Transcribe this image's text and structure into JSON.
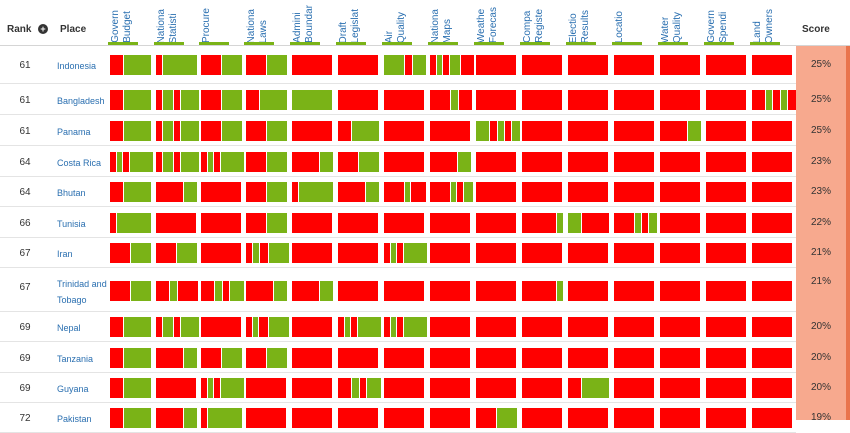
{
  "header": {
    "rank_label": "Rank",
    "place_label": "Place",
    "score_label": "Score",
    "columns": [
      {
        "key": "budget",
        "label": "Govern\nBudget"
      },
      {
        "key": "statistics",
        "label": "Nationa\nStatisti"
      },
      {
        "key": "procurement",
        "label": "Procure"
      },
      {
        "key": "laws",
        "label": "Nationa\nLaws"
      },
      {
        "key": "boundaries",
        "label": "Admini\nBoundar"
      },
      {
        "key": "legislation",
        "label": "Draft\nLegislat"
      },
      {
        "key": "air_quality",
        "label": "Air\nQuality"
      },
      {
        "key": "maps",
        "label": "Nationa\nMaps"
      },
      {
        "key": "weather",
        "label": "Weathe\nForecas"
      },
      {
        "key": "company_register",
        "label": "Compa\nRegiste"
      },
      {
        "key": "elections",
        "label": "Electio\nResults"
      },
      {
        "key": "locations",
        "label": "Locatio"
      },
      {
        "key": "water_quality",
        "label": "Water\nQuality"
      },
      {
        "key": "spending",
        "label": "Govern\nSpendi"
      },
      {
        "key": "land_ownership",
        "label": "Land\nOwners"
      }
    ]
  },
  "colors": {
    "red": "#ff0000",
    "green": "#7ab317",
    "score_bg": "#f7a98e",
    "link": "#2a6fb0"
  },
  "rows": [
    {
      "rank": "61",
      "place": "Indonesia",
      "score": "25%",
      "bars": [
        [
          "r",
          13,
          "g",
          27
        ],
        [
          "r",
          6,
          "g",
          34
        ],
        [
          "r",
          20,
          "g",
          20
        ],
        [
          "r",
          20,
          "g",
          20
        ],
        [
          "r",
          40
        ],
        [
          "r",
          40
        ],
        [
          "g",
          20,
          "r",
          7,
          "g",
          13
        ],
        [
          "r",
          6,
          "g",
          5,
          "r",
          6,
          "g",
          10,
          "r",
          13
        ],
        [
          "r",
          40
        ],
        [
          "r",
          40
        ],
        [
          "r",
          40
        ],
        [
          "r",
          40
        ],
        [
          "r",
          40
        ],
        [
          "r",
          40
        ],
        [
          "r",
          40
        ]
      ]
    },
    {
      "rank": "61",
      "place": "Bangladesh",
      "score": "25%",
      "bars": [
        [
          "r",
          13,
          "g",
          27
        ],
        [
          "r",
          6,
          "g",
          10,
          "r",
          6,
          "g",
          18
        ],
        [
          "r",
          20,
          "g",
          20
        ],
        [
          "r",
          13,
          "g",
          27
        ],
        [
          "g",
          40
        ],
        [
          "r",
          40
        ],
        [
          "r",
          40
        ],
        [
          "r",
          20,
          "g",
          7,
          "r",
          13
        ],
        [
          "r",
          40
        ],
        [
          "r",
          40
        ],
        [
          "r",
          40
        ],
        [
          "r",
          40
        ],
        [
          "r",
          40
        ],
        [
          "r",
          40
        ],
        [
          "r",
          13,
          "g",
          6,
          "r",
          7,
          "g",
          6,
          "r",
          8
        ]
      ]
    },
    {
      "rank": "61",
      "place": "Panama",
      "score": "25%",
      "bars": [
        [
          "r",
          13,
          "g",
          27
        ],
        [
          "r",
          6,
          "g",
          10,
          "r",
          6,
          "g",
          18
        ],
        [
          "r",
          20,
          "g",
          20
        ],
        [
          "r",
          20,
          "g",
          20
        ],
        [
          "r",
          40
        ],
        [
          "r",
          13,
          "g",
          27
        ],
        [
          "r",
          40
        ],
        [
          "r",
          40
        ],
        [
          "g",
          13,
          "r",
          7,
          "g",
          6,
          "r",
          6,
          "g",
          8
        ],
        [
          "r",
          40
        ],
        [
          "r",
          40
        ],
        [
          "r",
          40
        ],
        [
          "r",
          27,
          "g",
          13
        ],
        [
          "r",
          40
        ],
        [
          "r",
          40
        ]
      ]
    },
    {
      "rank": "64",
      "place": "Costa Rica",
      "score": "23%",
      "bars": [
        [
          "r",
          6,
          "g",
          5,
          "r",
          6,
          "g",
          23
        ],
        [
          "r",
          6,
          "g",
          10,
          "r",
          6,
          "g",
          18
        ],
        [
          "r",
          6,
          "g",
          5,
          "r",
          6,
          "g",
          23
        ],
        [
          "r",
          20,
          "g",
          20
        ],
        [
          "r",
          27,
          "g",
          13
        ],
        [
          "r",
          20,
          "g",
          20
        ],
        [
          "r",
          40
        ],
        [
          "r",
          27,
          "g",
          13
        ],
        [
          "r",
          40
        ],
        [
          "r",
          40
        ],
        [
          "r",
          40
        ],
        [
          "r",
          40
        ],
        [
          "r",
          40
        ],
        [
          "r",
          40
        ],
        [
          "r",
          40
        ]
      ]
    },
    {
      "rank": "64",
      "place": "Bhutan",
      "score": "23%",
      "bars": [
        [
          "r",
          13,
          "g",
          27
        ],
        [
          "r",
          27,
          "g",
          13
        ],
        [
          "r",
          40
        ],
        [
          "r",
          20,
          "g",
          20
        ],
        [
          "r",
          6,
          "g",
          34
        ],
        [
          "r",
          27,
          "g",
          13
        ],
        [
          "r",
          20,
          "g",
          5,
          "r",
          15
        ],
        [
          "r",
          20,
          "g",
          5,
          "r",
          6,
          "g",
          9
        ],
        [
          "r",
          40
        ],
        [
          "r",
          40
        ],
        [
          "r",
          40
        ],
        [
          "r",
          40
        ],
        [
          "r",
          40
        ],
        [
          "r",
          40
        ],
        [
          "r",
          40
        ]
      ]
    },
    {
      "rank": "66",
      "place": "Tunisia",
      "score": "22%",
      "bars": [
        [
          "r",
          6,
          "g",
          34
        ],
        [
          "r",
          40
        ],
        [
          "r",
          40
        ],
        [
          "r",
          20,
          "g",
          20
        ],
        [
          "r",
          40
        ],
        [
          "r",
          40
        ],
        [
          "r",
          40
        ],
        [
          "r",
          40
        ],
        [
          "r",
          40
        ],
        [
          "r",
          34,
          "g",
          6
        ],
        [
          "g",
          13,
          "r",
          27
        ],
        [
          "r",
          20,
          "g",
          6,
          "r",
          6,
          "g",
          8
        ],
        [
          "r",
          40
        ],
        [
          "r",
          40
        ],
        [
          "r",
          40
        ]
      ]
    },
    {
      "rank": "67",
      "place": "Iran",
      "score": "21%",
      "bars": [
        [
          "r",
          20,
          "g",
          20
        ],
        [
          "r",
          20,
          "g",
          20
        ],
        [
          "r",
          40
        ],
        [
          "r",
          6,
          "g",
          6,
          "r",
          8,
          "g",
          20
        ],
        [
          "r",
          40
        ],
        [
          "r",
          40
        ],
        [
          "r",
          6,
          "g",
          5,
          "r",
          6,
          "g",
          23
        ],
        [
          "r",
          40
        ],
        [
          "r",
          40
        ],
        [
          "r",
          40
        ],
        [
          "r",
          40
        ],
        [
          "r",
          40
        ],
        [
          "r",
          40
        ],
        [
          "r",
          40
        ],
        [
          "r",
          40
        ]
      ]
    },
    {
      "rank": "67",
      "place": "Trinidad and Tobago",
      "score": "21%",
      "bars": [
        [
          "r",
          20,
          "g",
          20
        ],
        [
          "r",
          13,
          "g",
          7,
          "r",
          20
        ],
        [
          "r",
          13,
          "g",
          7,
          "r",
          6,
          "g",
          14
        ],
        [
          "r",
          27,
          "g",
          13
        ],
        [
          "r",
          27,
          "g",
          13
        ],
        [
          "r",
          40
        ],
        [
          "r",
          40
        ],
        [
          "r",
          40
        ],
        [
          "r",
          40
        ],
        [
          "r",
          34,
          "g",
          6
        ],
        [
          "r",
          40
        ],
        [
          "r",
          40
        ],
        [
          "r",
          40
        ],
        [
          "r",
          40
        ],
        [
          "r",
          40
        ]
      ]
    },
    {
      "rank": "69",
      "place": "Nepal",
      "score": "20%",
      "bars": [
        [
          "r",
          13,
          "g",
          27
        ],
        [
          "r",
          6,
          "g",
          10,
          "r",
          6,
          "g",
          18
        ],
        [
          "r",
          40
        ],
        [
          "r",
          6,
          "g",
          5,
          "r",
          9,
          "g",
          20
        ],
        [
          "r",
          40
        ],
        [
          "r",
          6,
          "g",
          5,
          "r",
          6,
          "g",
          23
        ],
        [
          "r",
          6,
          "g",
          5,
          "r",
          6,
          "g",
          23
        ],
        [
          "r",
          40
        ],
        [
          "r",
          40
        ],
        [
          "r",
          40
        ],
        [
          "r",
          40
        ],
        [
          "r",
          40
        ],
        [
          "r",
          40
        ],
        [
          "r",
          40
        ],
        [
          "r",
          40
        ]
      ]
    },
    {
      "rank": "69",
      "place": "Tanzania",
      "score": "20%",
      "bars": [
        [
          "r",
          13,
          "g",
          27
        ],
        [
          "r",
          27,
          "g",
          13
        ],
        [
          "r",
          20,
          "g",
          20
        ],
        [
          "r",
          20,
          "g",
          20
        ],
        [
          "r",
          40
        ],
        [
          "r",
          40
        ],
        [
          "r",
          40
        ],
        [
          "r",
          40
        ],
        [
          "r",
          40
        ],
        [
          "r",
          40
        ],
        [
          "r",
          40
        ],
        [
          "r",
          40
        ],
        [
          "r",
          40
        ],
        [
          "r",
          40
        ],
        [
          "r",
          40
        ]
      ]
    },
    {
      "rank": "69",
      "place": "Guyana",
      "score": "20%",
      "bars": [
        [
          "r",
          13,
          "g",
          27
        ],
        [
          "r",
          40
        ],
        [
          "r",
          6,
          "g",
          5,
          "r",
          6,
          "g",
          23
        ],
        [
          "r",
          40
        ],
        [
          "r",
          40
        ],
        [
          "r",
          13,
          "g",
          7,
          "r",
          6,
          "g",
          14
        ],
        [
          "r",
          40
        ],
        [
          "r",
          40
        ],
        [
          "r",
          40
        ],
        [
          "r",
          40
        ],
        [
          "r",
          13,
          "g",
          27
        ],
        [
          "r",
          40
        ],
        [
          "r",
          40
        ],
        [
          "r",
          40
        ],
        [
          "r",
          40
        ]
      ]
    },
    {
      "rank": "72",
      "place": "Pakistan",
      "score": "19%",
      "bars": [
        [
          "r",
          13,
          "g",
          27
        ],
        [
          "r",
          27,
          "g",
          13
        ],
        [
          "r",
          6,
          "g",
          34
        ],
        [
          "r",
          40
        ],
        [
          "r",
          40
        ],
        [
          "r",
          40
        ],
        [
          "r",
          40
        ],
        [
          "r",
          40
        ],
        [
          "r",
          20,
          "g",
          20
        ],
        [
          "r",
          40
        ],
        [
          "r",
          40
        ],
        [
          "r",
          40
        ],
        [
          "r",
          40
        ],
        [
          "r",
          40
        ],
        [
          "r",
          40
        ]
      ]
    }
  ]
}
